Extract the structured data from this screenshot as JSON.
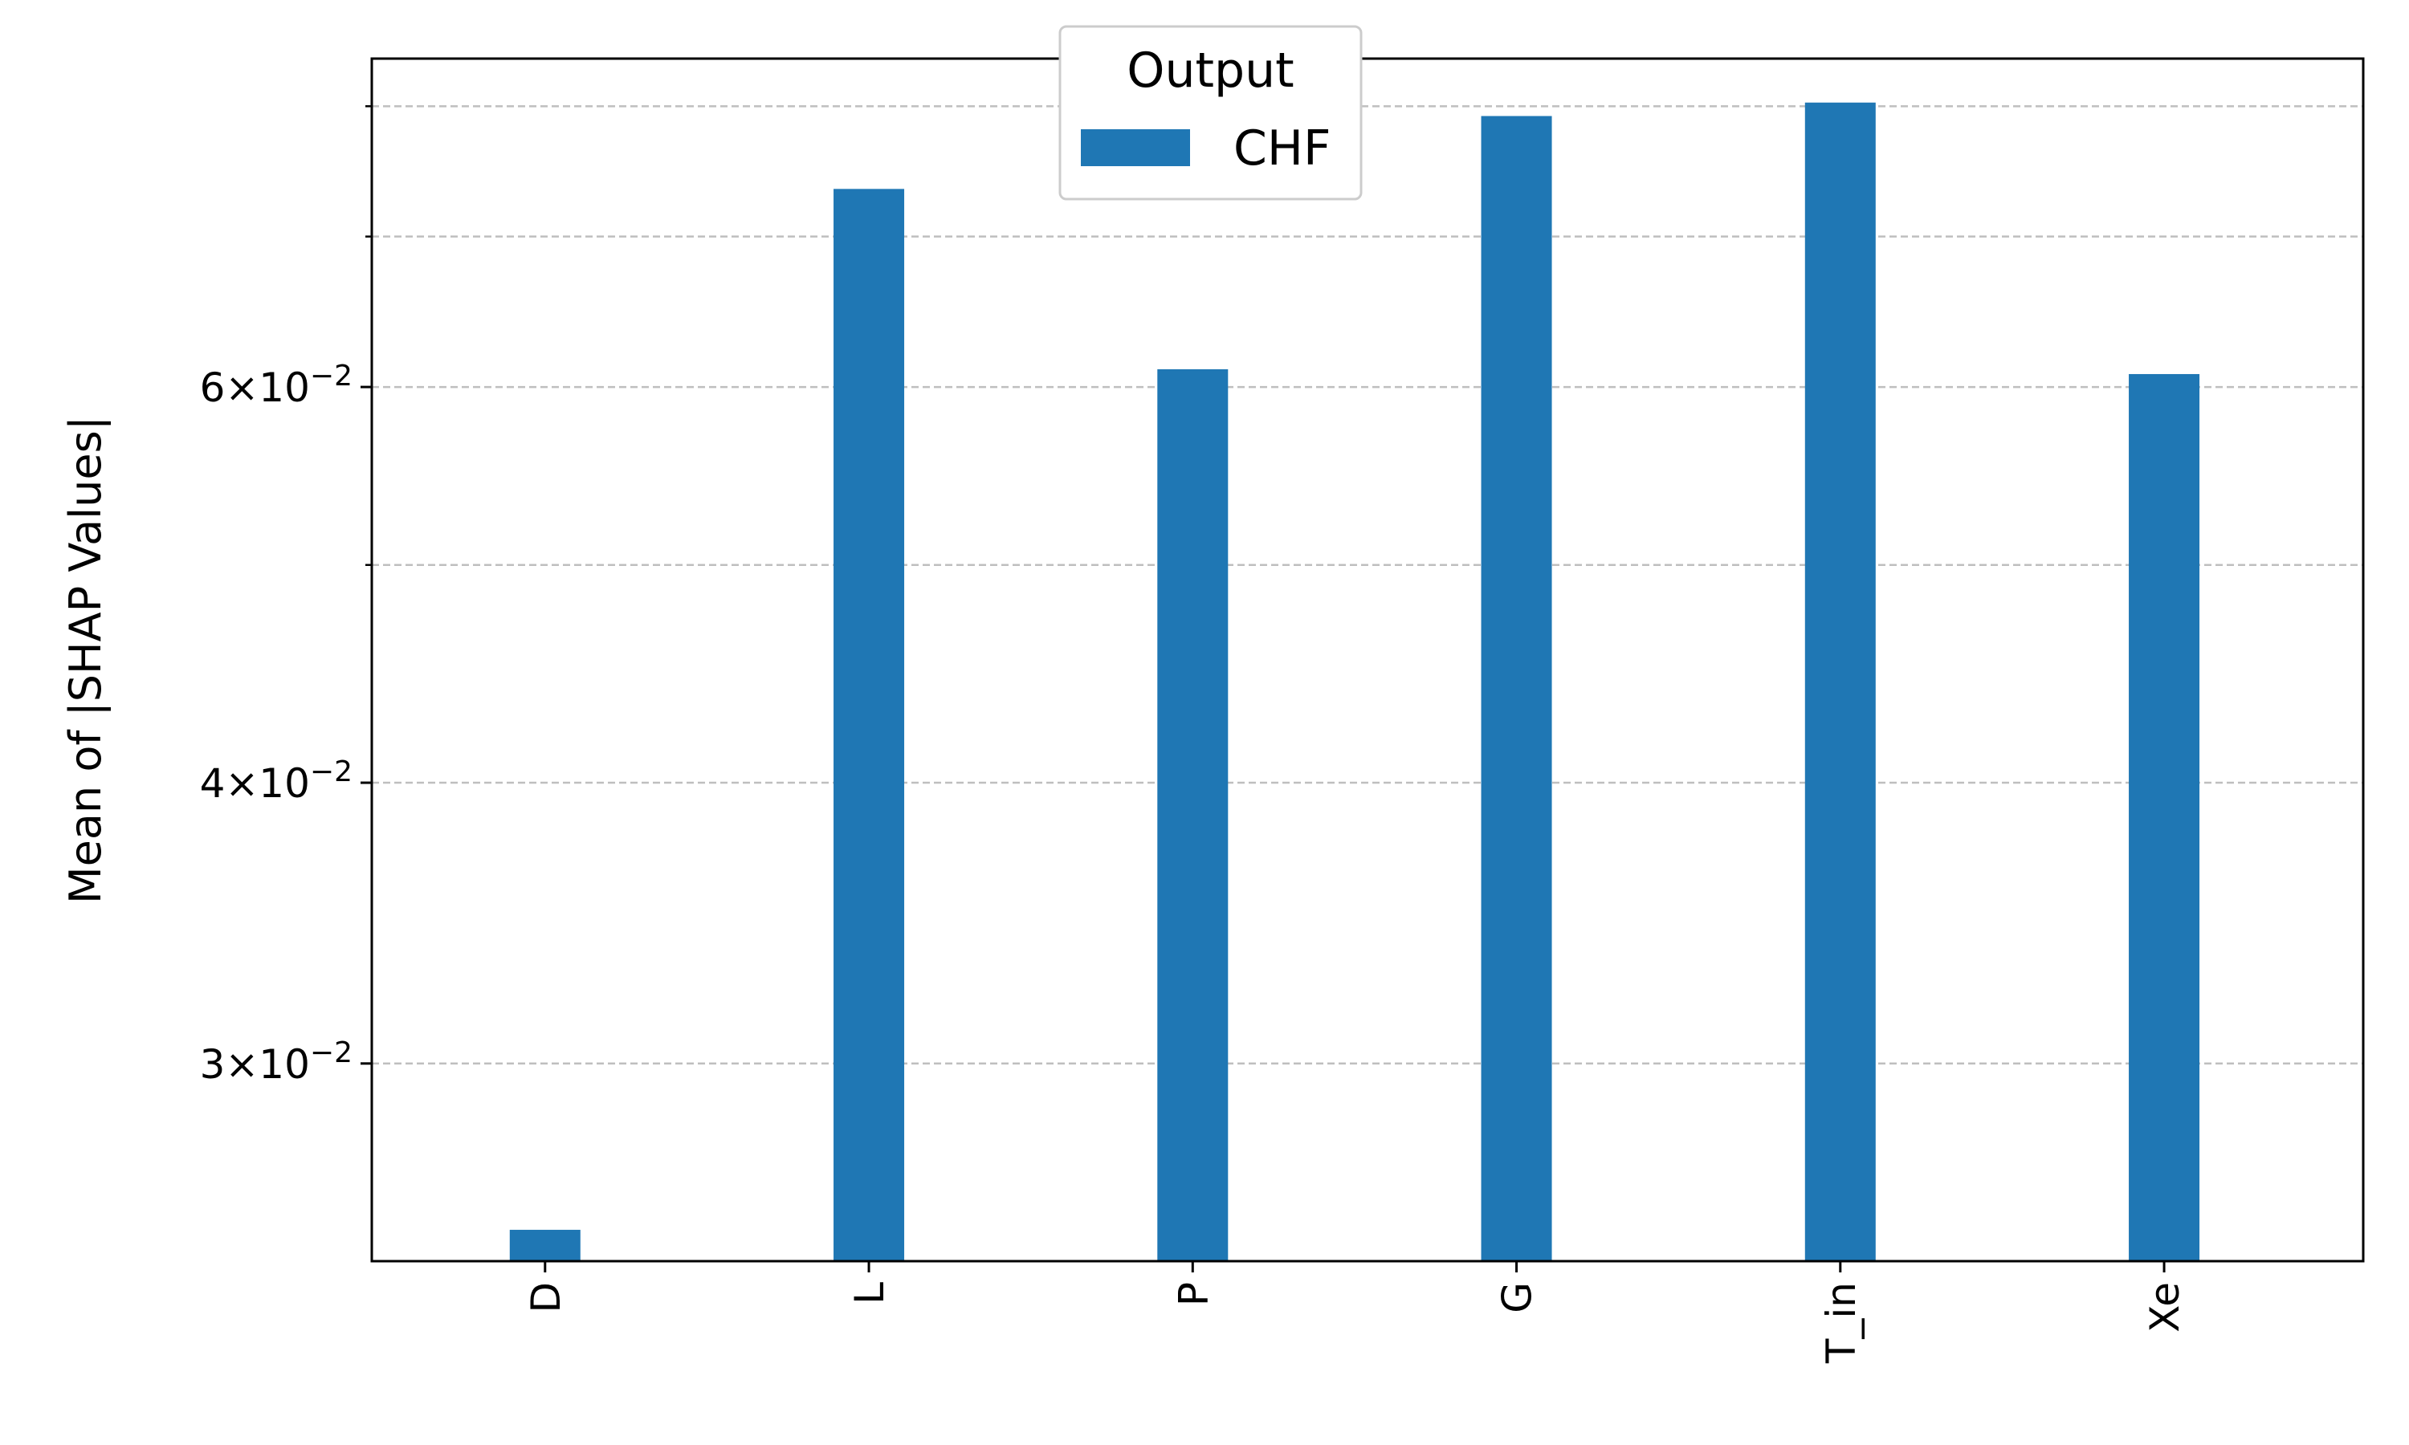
{
  "chart_data": {
    "type": "bar",
    "categories": [
      "D",
      "L",
      "P",
      "G",
      "T_in",
      "Xe"
    ],
    "series": [
      {
        "name": "CHF",
        "values": [
          0.0253,
          0.0735,
          0.0611,
          0.0792,
          0.0803,
          0.0608
        ]
      }
    ],
    "xlabel": "",
    "ylabel": "Mean of |SHAP Values|",
    "yscale": "log",
    "ylim": [
      0.0245,
      0.084
    ],
    "yticks": [
      {
        "value": 0.03,
        "mantissa": "3",
        "exponent": "−2"
      },
      {
        "value": 0.04,
        "mantissa": "4",
        "exponent": "−2"
      },
      {
        "value": 0.06,
        "mantissa": "6",
        "exponent": "−2"
      }
    ],
    "minor_yticks": [
      0.05,
      0.07,
      0.08
    ],
    "grid": {
      "y": true,
      "x": false,
      "style": "dashed"
    },
    "legend": {
      "title": "Output",
      "placement": "top-center"
    },
    "colors": {
      "bar": "#1f77b4",
      "grid": "#bfbfbf",
      "axis": "#000000"
    }
  }
}
